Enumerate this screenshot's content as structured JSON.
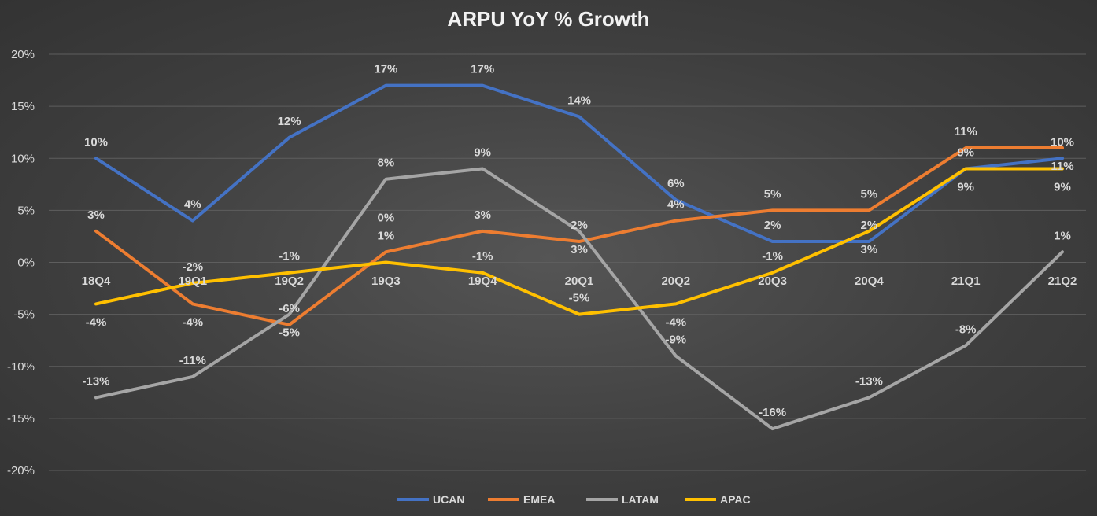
{
  "chart_data": {
    "type": "line",
    "title": "ARPU YoY % Growth",
    "xlabel": "",
    "ylabel": "",
    "categories": [
      "18Q4",
      "19Q1",
      "19Q2",
      "19Q3",
      "19Q4",
      "20Q1",
      "20Q2",
      "20Q3",
      "20Q4",
      "21Q1",
      "21Q2"
    ],
    "ylim": [
      -20,
      20
    ],
    "yticks": [
      20,
      15,
      10,
      5,
      0,
      -5,
      -10,
      -15,
      -20
    ],
    "ytick_labels": [
      "20%",
      "15%",
      "10%",
      "5%",
      "0%",
      "-5%",
      "-10%",
      "-15%",
      "-20%"
    ],
    "grid": true,
    "legend": "bottom",
    "data_labels": true,
    "series": [
      {
        "name": "UCAN",
        "color": "#4472C4",
        "values": [
          10,
          4,
          12,
          17,
          17,
          14,
          6,
          2,
          2,
          9,
          10
        ]
      },
      {
        "name": "EMEA",
        "color": "#ED7D31",
        "values": [
          3,
          -4,
          -6,
          1,
          3,
          2,
          4,
          5,
          5,
          11,
          11
        ]
      },
      {
        "name": "LATAM",
        "color": "#A5A5A5",
        "values": [
          -13,
          -11,
          -5,
          8,
          9,
          3,
          -9,
          -16,
          -13,
          -8,
          1
        ]
      },
      {
        "name": "APAC",
        "color": "#FFC000",
        "values": [
          -4,
          -2,
          -1,
          0,
          -1,
          -5,
          -4,
          -1,
          3,
          9,
          9
        ]
      }
    ]
  }
}
